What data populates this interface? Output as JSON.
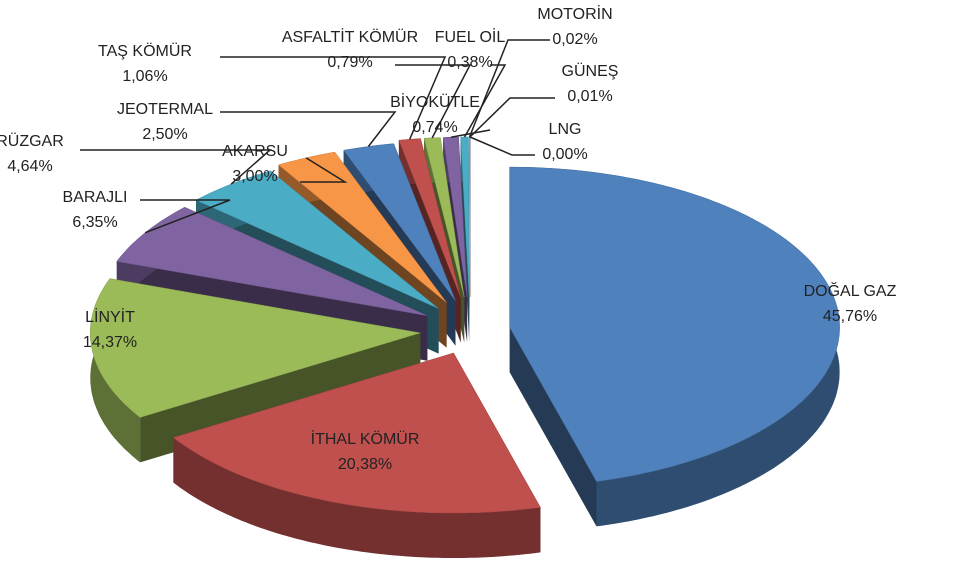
{
  "chart_data": {
    "type": "pie3d",
    "categories": [
      "DOĞAL GAZ",
      "İTHAL KÖMÜR",
      "LİNYİT",
      "BARAJLI",
      "RÜZGAR",
      "AKARSU",
      "JEOTERMAL",
      "TAŞ KÖMÜR",
      "ASFALTİT KÖMÜR",
      "BİYOKÜTLE",
      "FUEL OİL",
      "MOTORİN",
      "GÜNEŞ",
      "LNG"
    ],
    "values": [
      45.76,
      20.38,
      14.37,
      6.35,
      4.64,
      3.0,
      2.5,
      1.06,
      0.79,
      0.74,
      0.38,
      0.02,
      0.01,
      0.0
    ],
    "value_labels": [
      "45,76%",
      "20,38%",
      "14,37%",
      "6,35%",
      "4,64%",
      "3,00%",
      "2,50%",
      "1,06%",
      "0,79%",
      "0,74%",
      "0,38%",
      "0,02%",
      "0,01%",
      "0,00%"
    ],
    "colors": [
      "#4f81bd",
      "#c0504d",
      "#9bbb59",
      "#8064a2",
      "#4bacc6",
      "#f79646",
      "#4f81bd",
      "#c0504d",
      "#9bbb59",
      "#8064a2",
      "#4bacc6",
      "#f79646",
      "#4f81bd",
      "#c0504d"
    ]
  }
}
